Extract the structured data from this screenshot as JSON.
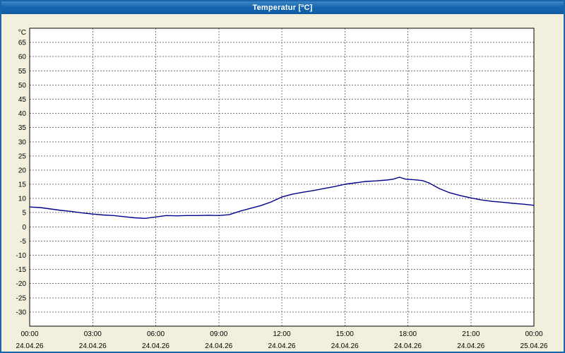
{
  "window": {
    "title": "Temperatur [ºC]"
  },
  "chart_data": {
    "type": "line",
    "title": "Temperatur [ºC]",
    "xlabel": "",
    "ylabel": "°C",
    "ylim": [
      -35,
      70
    ],
    "xlim_hours": [
      0,
      24
    ],
    "grid": true,
    "legend_position": "none",
    "line_color": "#00008b",
    "plot_background": "#ffffff",
    "window_background": "#f2efdc",
    "y_ticks": [
      65,
      60,
      55,
      50,
      45,
      40,
      35,
      30,
      25,
      20,
      15,
      10,
      5,
      0,
      -5,
      -10,
      -15,
      -20,
      -25,
      -30
    ],
    "x_ticks": [
      {
        "hour": 0,
        "time": "00:00",
        "date": "24.04.26"
      },
      {
        "hour": 3,
        "time": "03:00",
        "date": "24.04.26"
      },
      {
        "hour": 6,
        "time": "06:00",
        "date": "24.04.26"
      },
      {
        "hour": 9,
        "time": "09:00",
        "date": "24.04.26"
      },
      {
        "hour": 12,
        "time": "12:00",
        "date": "24.04.26"
      },
      {
        "hour": 15,
        "time": "15:00",
        "date": "24.04.26"
      },
      {
        "hour": 18,
        "time": "18:00",
        "date": "24.04.26"
      },
      {
        "hour": 21,
        "time": "21:00",
        "date": "24.04.26"
      },
      {
        "hour": 24,
        "time": "00:00",
        "date": "25.04.26"
      }
    ],
    "series": [
      {
        "name": "Temperatur",
        "x": [
          0,
          0.5,
          1,
          1.5,
          2,
          2.5,
          3,
          3.5,
          4,
          4.5,
          5,
          5.5,
          6,
          6.5,
          7,
          7.5,
          8,
          8.5,
          9,
          9.5,
          10,
          10.5,
          11,
          11.5,
          12,
          12.5,
          13,
          13.5,
          14,
          14.5,
          15,
          15.5,
          16,
          16.5,
          17,
          17.3,
          17.6,
          17.9,
          18.3,
          18.7,
          19,
          19.5,
          20,
          20.5,
          21,
          21.5,
          22,
          22.5,
          23,
          23.5,
          24
        ],
        "y": [
          7,
          6.8,
          6.3,
          5.8,
          5.4,
          4.9,
          4.5,
          4.2,
          4,
          3.6,
          3.2,
          3,
          3.5,
          4,
          3.9,
          4,
          4,
          4.1,
          4,
          4.3,
          5.5,
          6.5,
          7.5,
          8.8,
          10.5,
          11.5,
          12.2,
          12.8,
          13.5,
          14.2,
          15,
          15.5,
          16,
          16.2,
          16.5,
          16.8,
          17.5,
          16.8,
          16.6,
          16.3,
          15.5,
          13.5,
          12,
          11,
          10.2,
          9.5,
          9,
          8.7,
          8.3,
          8,
          7.6
        ]
      }
    ]
  }
}
